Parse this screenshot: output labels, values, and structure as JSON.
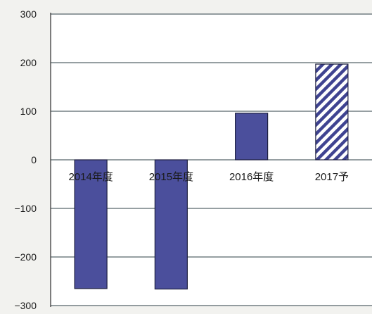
{
  "chart_data": {
    "type": "bar",
    "title": "",
    "xlabel": "",
    "ylabel": "",
    "categories": [
      "2014年度",
      "2015年度",
      "2016年度",
      "2017予"
    ],
    "values": [
      -265,
      -266,
      96,
      197
    ],
    "ylim": [
      -300,
      300
    ],
    "yticks": [
      300,
      200,
      100,
      0,
      -100,
      -200,
      -300
    ],
    "ytick_labels": [
      "300",
      "200",
      "100",
      "0",
      "−100",
      "−200",
      "−300"
    ],
    "grid": true,
    "legend": "none",
    "bar_styles": [
      "solid",
      "solid",
      "solid",
      "hatched"
    ],
    "colors": {
      "bar_fill": "#4b4f9c",
      "bar_stroke": "#1e2040",
      "hatch": "#3f4391",
      "hatch_bg": "#ffffff",
      "gridline": "#2c3f44",
      "axis": "#2c2c2c",
      "text": "#1a1a1a",
      "plot_bg": "#ffffff",
      "page_bg": "#f2f2ef"
    }
  }
}
